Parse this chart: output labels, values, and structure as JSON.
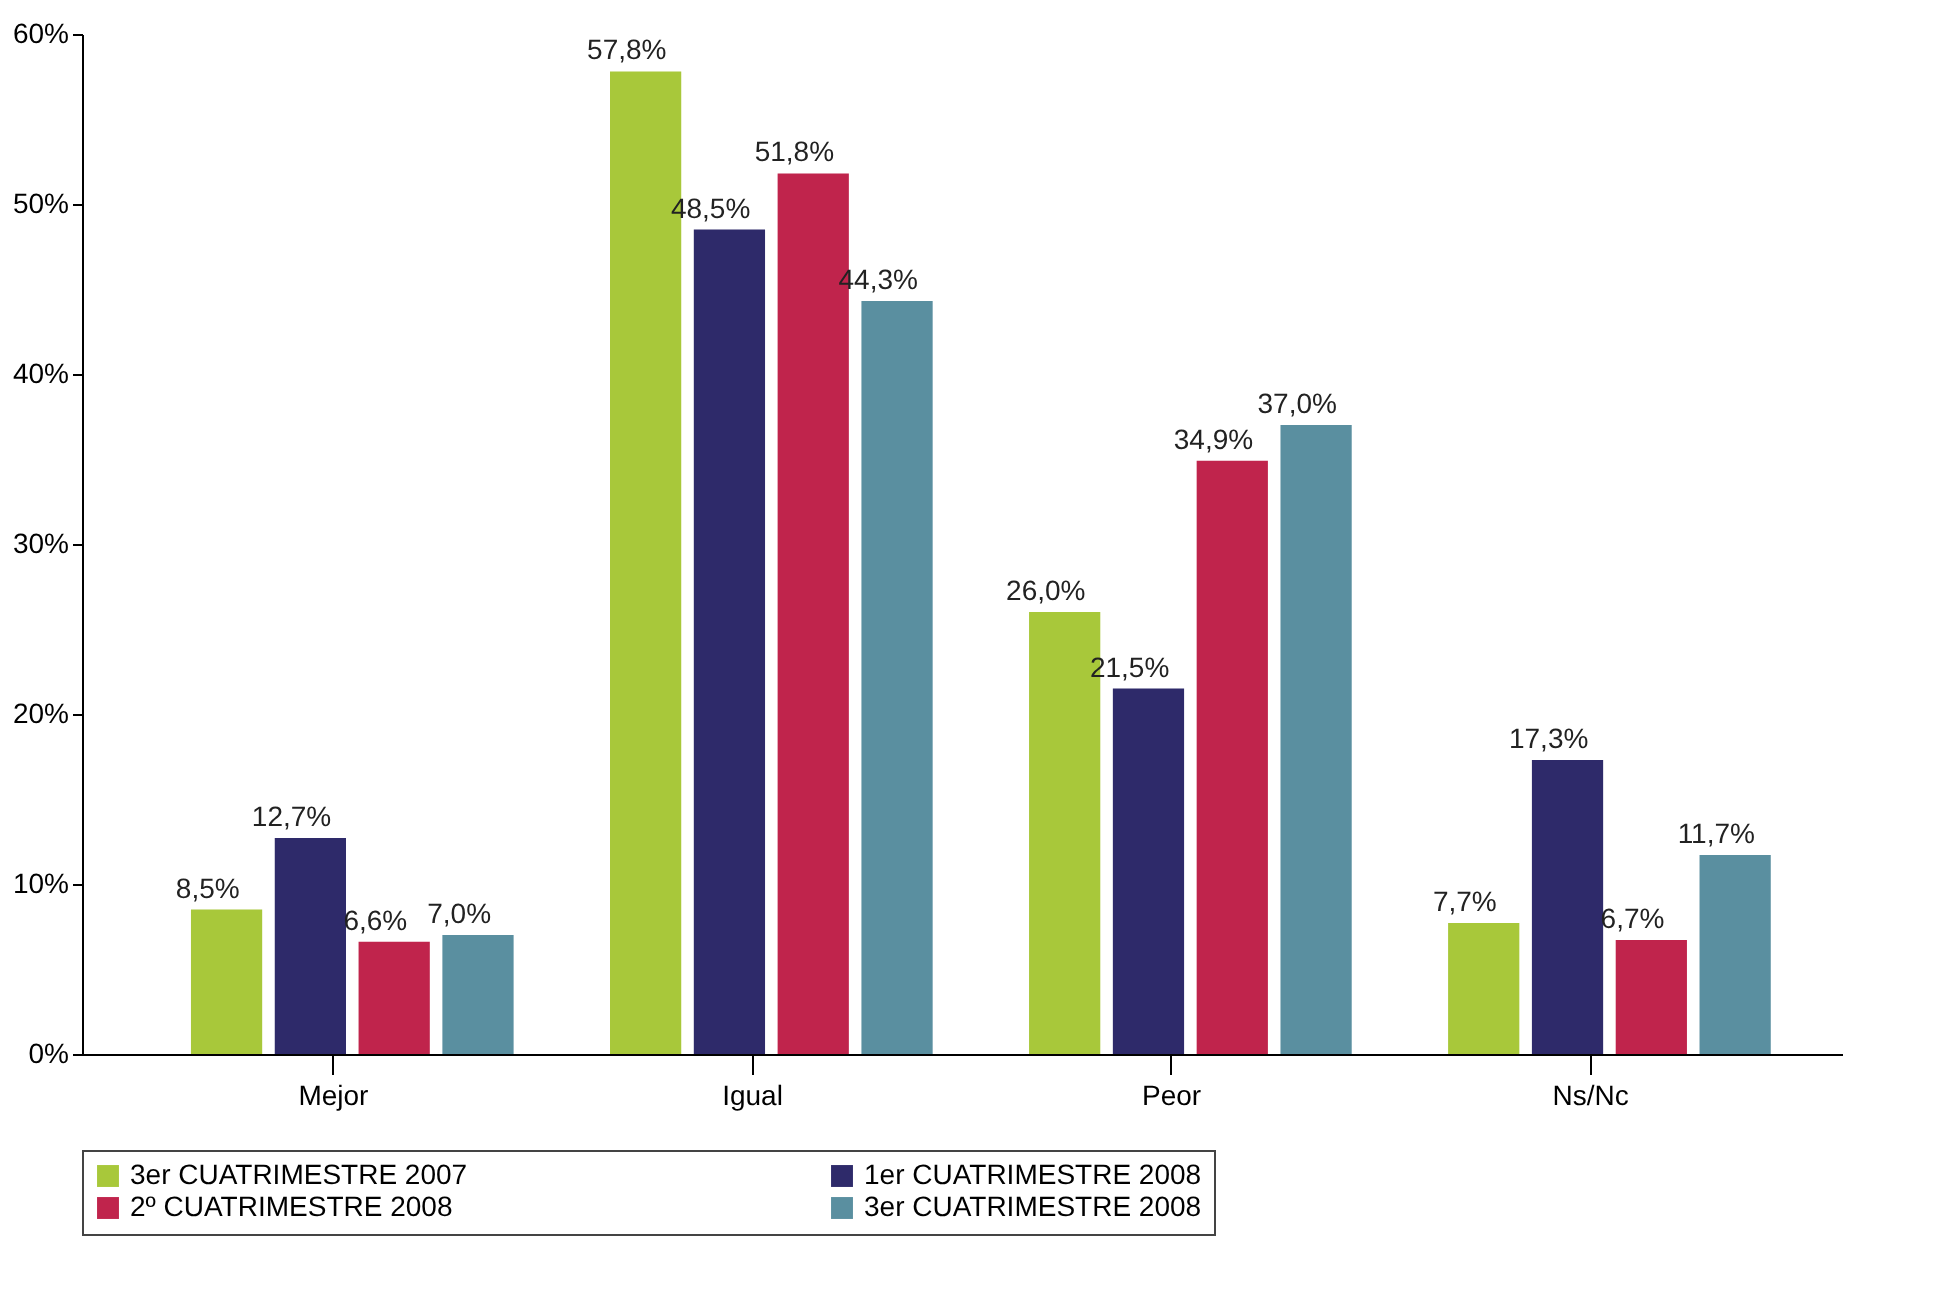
{
  "chart_data": {
    "type": "bar",
    "categories": [
      "Mejor",
      "Igual",
      "Peor",
      "Ns/Nc"
    ],
    "series": [
      {
        "name": "3er CUATRIMESTRE 2007",
        "color": "#a8c83a",
        "values": [
          8.5,
          57.8,
          26.0,
          7.7
        ],
        "value_labels": [
          "8,5%",
          "57,8%",
          "26,0%",
          "7,7%"
        ]
      },
      {
        "name": "1er CUATRIMESTRE 2008",
        "color": "#2e2a6a",
        "values": [
          12.7,
          48.5,
          21.5,
          17.3
        ],
        "value_labels": [
          "12,7%",
          "48,5%",
          "21,5%",
          "17,3%"
        ]
      },
      {
        "name": "2º CUATRIMESTRE 2008",
        "color": "#c0244c",
        "values": [
          6.6,
          51.8,
          34.9,
          6.7
        ],
        "value_labels": [
          "6,6%",
          "51,8%",
          "34,9%",
          "6,7%"
        ]
      },
      {
        "name": "3er CUATRIMESTRE 2008",
        "color": "#5a8fa0",
        "values": [
          7.0,
          44.3,
          37.0,
          11.7
        ],
        "value_labels": [
          "7,0%",
          "44,3%",
          "37,0%",
          "11,7%"
        ]
      }
    ],
    "ylim": [
      0,
      60
    ],
    "yticks": [
      {
        "value": 0,
        "label": "0%"
      },
      {
        "value": 10,
        "label": "10%"
      },
      {
        "value": 20,
        "label": "20%"
      },
      {
        "value": 30,
        "label": "30%"
      },
      {
        "value": 40,
        "label": "40%"
      },
      {
        "value": 50,
        "label": "50%"
      },
      {
        "value": 60,
        "label": "60%"
      }
    ],
    "grid": false,
    "legend": "bottom"
  }
}
